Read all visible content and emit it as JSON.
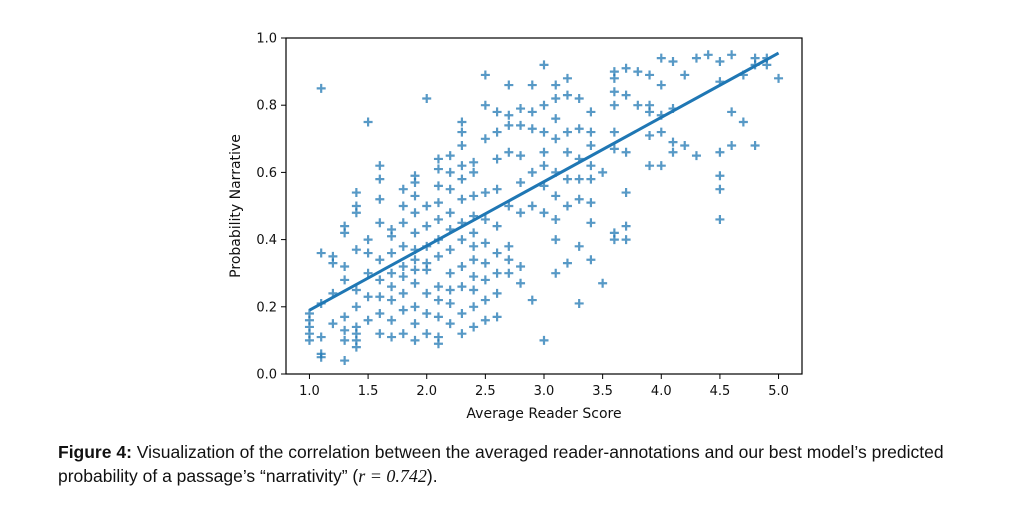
{
  "chart_data": {
    "type": "scatter",
    "title": "",
    "xlabel": "Average Reader Score",
    "ylabel": "Probability Narrative",
    "xlim": [
      0.8,
      5.2
    ],
    "ylim": [
      0.0,
      1.0
    ],
    "xticks": [
      "1.0",
      "1.5",
      "2.0",
      "2.5",
      "3.0",
      "3.5",
      "4.0",
      "4.5",
      "5.0"
    ],
    "yticks": [
      "0.0",
      "0.2",
      "0.4",
      "0.6",
      "0.8",
      "1.0"
    ],
    "marker": "plus",
    "color": "#1f77b4",
    "grid": false,
    "regression_line": {
      "x": [
        1.0,
        5.0
      ],
      "y": [
        0.19,
        0.955
      ]
    },
    "points": [
      [
        1.0,
        0.1
      ],
      [
        1.0,
        0.12
      ],
      [
        1.0,
        0.14
      ],
      [
        1.0,
        0.16
      ],
      [
        1.0,
        0.18
      ],
      [
        1.1,
        0.06
      ],
      [
        1.1,
        0.05
      ],
      [
        1.1,
        0.11
      ],
      [
        1.1,
        0.21
      ],
      [
        1.1,
        0.36
      ],
      [
        1.1,
        0.85
      ],
      [
        1.2,
        0.15
      ],
      [
        1.2,
        0.24
      ],
      [
        1.2,
        0.33
      ],
      [
        1.2,
        0.35
      ],
      [
        1.3,
        0.04
      ],
      [
        1.3,
        0.1
      ],
      [
        1.3,
        0.13
      ],
      [
        1.3,
        0.17
      ],
      [
        1.3,
        0.28
      ],
      [
        1.3,
        0.32
      ],
      [
        1.3,
        0.42
      ],
      [
        1.3,
        0.44
      ],
      [
        1.4,
        0.08
      ],
      [
        1.4,
        0.1
      ],
      [
        1.4,
        0.12
      ],
      [
        1.4,
        0.14
      ],
      [
        1.4,
        0.2
      ],
      [
        1.4,
        0.25
      ],
      [
        1.4,
        0.37
      ],
      [
        1.4,
        0.48
      ],
      [
        1.4,
        0.5
      ],
      [
        1.4,
        0.54
      ],
      [
        1.5,
        0.16
      ],
      [
        1.5,
        0.23
      ],
      [
        1.5,
        0.3
      ],
      [
        1.5,
        0.36
      ],
      [
        1.5,
        0.4
      ],
      [
        1.5,
        0.75
      ],
      [
        1.6,
        0.12
      ],
      [
        1.6,
        0.18
      ],
      [
        1.6,
        0.23
      ],
      [
        1.6,
        0.28
      ],
      [
        1.6,
        0.34
      ],
      [
        1.6,
        0.45
      ],
      [
        1.6,
        0.52
      ],
      [
        1.6,
        0.58
      ],
      [
        1.6,
        0.62
      ],
      [
        1.7,
        0.11
      ],
      [
        1.7,
        0.16
      ],
      [
        1.7,
        0.22
      ],
      [
        1.7,
        0.26
      ],
      [
        1.7,
        0.3
      ],
      [
        1.7,
        0.36
      ],
      [
        1.7,
        0.41
      ],
      [
        1.7,
        0.43
      ],
      [
        1.8,
        0.12
      ],
      [
        1.8,
        0.19
      ],
      [
        1.8,
        0.24
      ],
      [
        1.8,
        0.29
      ],
      [
        1.8,
        0.32
      ],
      [
        1.8,
        0.38
      ],
      [
        1.8,
        0.45
      ],
      [
        1.8,
        0.5
      ],
      [
        1.8,
        0.55
      ],
      [
        1.9,
        0.1
      ],
      [
        1.9,
        0.15
      ],
      [
        1.9,
        0.2
      ],
      [
        1.9,
        0.27
      ],
      [
        1.9,
        0.31
      ],
      [
        1.9,
        0.34
      ],
      [
        1.9,
        0.37
      ],
      [
        1.9,
        0.42
      ],
      [
        1.9,
        0.48
      ],
      [
        1.9,
        0.53
      ],
      [
        1.9,
        0.57
      ],
      [
        1.9,
        0.59
      ],
      [
        2.0,
        0.12
      ],
      [
        2.0,
        0.18
      ],
      [
        2.0,
        0.24
      ],
      [
        2.0,
        0.31
      ],
      [
        2.0,
        0.33
      ],
      [
        2.0,
        0.38
      ],
      [
        2.0,
        0.44
      ],
      [
        2.0,
        0.5
      ],
      [
        2.0,
        0.82
      ],
      [
        2.1,
        0.09
      ],
      [
        2.1,
        0.11
      ],
      [
        2.1,
        0.17
      ],
      [
        2.1,
        0.22
      ],
      [
        2.1,
        0.26
      ],
      [
        2.1,
        0.35
      ],
      [
        2.1,
        0.4
      ],
      [
        2.1,
        0.46
      ],
      [
        2.1,
        0.51
      ],
      [
        2.1,
        0.56
      ],
      [
        2.1,
        0.61
      ],
      [
        2.1,
        0.64
      ],
      [
        2.2,
        0.15
      ],
      [
        2.2,
        0.21
      ],
      [
        2.2,
        0.25
      ],
      [
        2.2,
        0.3
      ],
      [
        2.2,
        0.37
      ],
      [
        2.2,
        0.43
      ],
      [
        2.2,
        0.48
      ],
      [
        2.2,
        0.55
      ],
      [
        2.2,
        0.6
      ],
      [
        2.2,
        0.65
      ],
      [
        2.3,
        0.12
      ],
      [
        2.3,
        0.18
      ],
      [
        2.3,
        0.26
      ],
      [
        2.3,
        0.32
      ],
      [
        2.3,
        0.4
      ],
      [
        2.3,
        0.45
      ],
      [
        2.3,
        0.52
      ],
      [
        2.3,
        0.58
      ],
      [
        2.3,
        0.62
      ],
      [
        2.3,
        0.68
      ],
      [
        2.3,
        0.72
      ],
      [
        2.3,
        0.75
      ],
      [
        2.4,
        0.14
      ],
      [
        2.4,
        0.2
      ],
      [
        2.4,
        0.25
      ],
      [
        2.4,
        0.29
      ],
      [
        2.4,
        0.34
      ],
      [
        2.4,
        0.38
      ],
      [
        2.4,
        0.42
      ],
      [
        2.4,
        0.47
      ],
      [
        2.4,
        0.53
      ],
      [
        2.4,
        0.6
      ],
      [
        2.4,
        0.63
      ],
      [
        2.5,
        0.16
      ],
      [
        2.5,
        0.22
      ],
      [
        2.5,
        0.28
      ],
      [
        2.5,
        0.33
      ],
      [
        2.5,
        0.39
      ],
      [
        2.5,
        0.46
      ],
      [
        2.5,
        0.54
      ],
      [
        2.5,
        0.7
      ],
      [
        2.5,
        0.8
      ],
      [
        2.5,
        0.89
      ],
      [
        2.6,
        0.17
      ],
      [
        2.6,
        0.24
      ],
      [
        2.6,
        0.3
      ],
      [
        2.6,
        0.36
      ],
      [
        2.6,
        0.44
      ],
      [
        2.6,
        0.55
      ],
      [
        2.6,
        0.64
      ],
      [
        2.6,
        0.72
      ],
      [
        2.6,
        0.78
      ],
      [
        2.7,
        0.3
      ],
      [
        2.7,
        0.34
      ],
      [
        2.7,
        0.38
      ],
      [
        2.7,
        0.5
      ],
      [
        2.7,
        0.66
      ],
      [
        2.7,
        0.74
      ],
      [
        2.7,
        0.77
      ],
      [
        2.7,
        0.86
      ],
      [
        2.8,
        0.27
      ],
      [
        2.8,
        0.32
      ],
      [
        2.8,
        0.48
      ],
      [
        2.8,
        0.57
      ],
      [
        2.8,
        0.65
      ],
      [
        2.8,
        0.74
      ],
      [
        2.8,
        0.79
      ],
      [
        2.9,
        0.22
      ],
      [
        2.9,
        0.5
      ],
      [
        2.9,
        0.6
      ],
      [
        2.9,
        0.73
      ],
      [
        2.9,
        0.78
      ],
      [
        2.9,
        0.86
      ],
      [
        3.0,
        0.1
      ],
      [
        3.0,
        0.48
      ],
      [
        3.0,
        0.56
      ],
      [
        3.0,
        0.62
      ],
      [
        3.0,
        0.66
      ],
      [
        3.0,
        0.72
      ],
      [
        3.0,
        0.8
      ],
      [
        3.0,
        0.92
      ],
      [
        3.1,
        0.3
      ],
      [
        3.1,
        0.4
      ],
      [
        3.1,
        0.46
      ],
      [
        3.1,
        0.53
      ],
      [
        3.1,
        0.6
      ],
      [
        3.1,
        0.7
      ],
      [
        3.1,
        0.76
      ],
      [
        3.1,
        0.82
      ],
      [
        3.1,
        0.86
      ],
      [
        3.2,
        0.33
      ],
      [
        3.2,
        0.5
      ],
      [
        3.2,
        0.58
      ],
      [
        3.2,
        0.66
      ],
      [
        3.2,
        0.72
      ],
      [
        3.2,
        0.83
      ],
      [
        3.2,
        0.88
      ],
      [
        3.3,
        0.21
      ],
      [
        3.3,
        0.38
      ],
      [
        3.3,
        0.52
      ],
      [
        3.3,
        0.58
      ],
      [
        3.3,
        0.64
      ],
      [
        3.3,
        0.73
      ],
      [
        3.3,
        0.82
      ],
      [
        3.4,
        0.34
      ],
      [
        3.4,
        0.45
      ],
      [
        3.4,
        0.51
      ],
      [
        3.4,
        0.58
      ],
      [
        3.4,
        0.62
      ],
      [
        3.4,
        0.68
      ],
      [
        3.4,
        0.72
      ],
      [
        3.4,
        0.78
      ],
      [
        3.5,
        0.27
      ],
      [
        3.5,
        0.6
      ],
      [
        3.6,
        0.4
      ],
      [
        3.6,
        0.42
      ],
      [
        3.6,
        0.67
      ],
      [
        3.6,
        0.72
      ],
      [
        3.6,
        0.8
      ],
      [
        3.6,
        0.84
      ],
      [
        3.6,
        0.88
      ],
      [
        3.6,
        0.9
      ],
      [
        3.7,
        0.4
      ],
      [
        3.7,
        0.44
      ],
      [
        3.7,
        0.54
      ],
      [
        3.7,
        0.66
      ],
      [
        3.7,
        0.83
      ],
      [
        3.7,
        0.91
      ],
      [
        3.8,
        0.8
      ],
      [
        3.8,
        0.9
      ],
      [
        3.9,
        0.62
      ],
      [
        3.9,
        0.71
      ],
      [
        3.9,
        0.78
      ],
      [
        3.9,
        0.8
      ],
      [
        3.9,
        0.89
      ],
      [
        4.0,
        0.62
      ],
      [
        4.0,
        0.72
      ],
      [
        4.0,
        0.77
      ],
      [
        4.0,
        0.86
      ],
      [
        4.0,
        0.94
      ],
      [
        4.1,
        0.66
      ],
      [
        4.1,
        0.69
      ],
      [
        4.1,
        0.79
      ],
      [
        4.1,
        0.93
      ],
      [
        4.2,
        0.68
      ],
      [
        4.2,
        0.89
      ],
      [
        4.3,
        0.65
      ],
      [
        4.3,
        0.94
      ],
      [
        4.4,
        0.95
      ],
      [
        4.5,
        0.46
      ],
      [
        4.5,
        0.55
      ],
      [
        4.5,
        0.59
      ],
      [
        4.5,
        0.66
      ],
      [
        4.5,
        0.87
      ],
      [
        4.5,
        0.93
      ],
      [
        4.6,
        0.68
      ],
      [
        4.6,
        0.78
      ],
      [
        4.6,
        0.95
      ],
      [
        4.7,
        0.75
      ],
      [
        4.7,
        0.89
      ],
      [
        4.8,
        0.68
      ],
      [
        4.8,
        0.92
      ],
      [
        4.8,
        0.94
      ],
      [
        4.9,
        0.94
      ],
      [
        4.9,
        0.92
      ],
      [
        5.0,
        0.88
      ]
    ]
  },
  "caption": {
    "label": "Figure 4:",
    "text_before_math": " Visualization of the correlation between the averaged reader-annotations and our best model’s predicted probability of a passage’s “narrativity” (",
    "math": "r = 0.742",
    "text_after_math": ")."
  }
}
